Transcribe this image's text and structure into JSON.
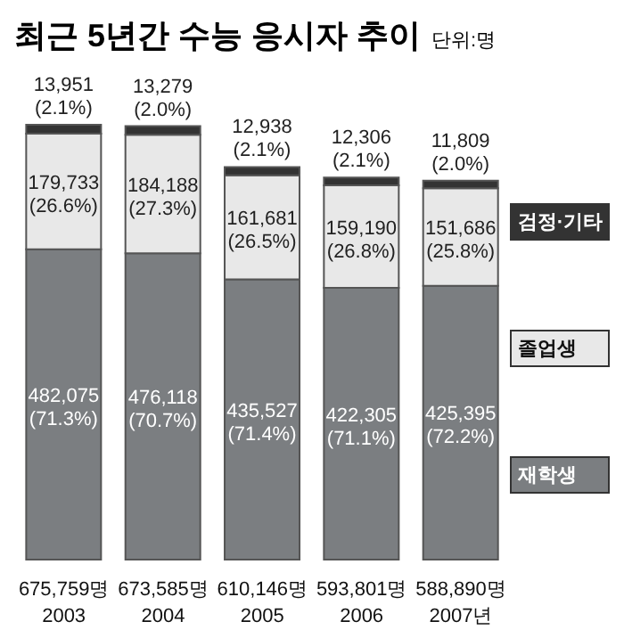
{
  "chart_data": {
    "type": "bar",
    "title": "최근 5년간 수능 응시자 추이",
    "subtitle": "단위:명",
    "stacked": true,
    "legend": "right",
    "categories": [
      "2003",
      "2004",
      "2005",
      "2006",
      "2007년"
    ],
    "series": [
      {
        "name": "재학생",
        "color": "#7b7e81",
        "values": [
          482075,
          476118,
          435527,
          422305,
          425395
        ],
        "value_labels": [
          "482,075\n(71.3%)",
          "476,118\n(70.7%)",
          "435,527\n(71.4%)",
          "422,305\n(71.1%)",
          "425,395\n(72.2%)"
        ]
      },
      {
        "name": "졸업생",
        "color": "#e8e8e8",
        "values": [
          179733,
          184188,
          161681,
          159190,
          151686
        ],
        "value_labels": [
          "179,733\n(26.6%)",
          "184,188\n(27.3%)",
          "161,681\n(26.5%)",
          "159,190\n(26.8%)",
          "151,686\n(25.8%)"
        ]
      },
      {
        "name": "검정·기타",
        "color": "#333333",
        "values": [
          13951,
          13279,
          12938,
          12306,
          11809
        ],
        "value_labels": [
          "13,951\n(2.1%)",
          "13,279\n(2.0%)",
          "12,938\n(2.1%)",
          "12,306\n(2.1%)",
          "11,809\n(2.0%)"
        ]
      }
    ],
    "totals": [
      "675,759명",
      "673,585명",
      "610,146명",
      "593,801명",
      "588,890명"
    ]
  }
}
